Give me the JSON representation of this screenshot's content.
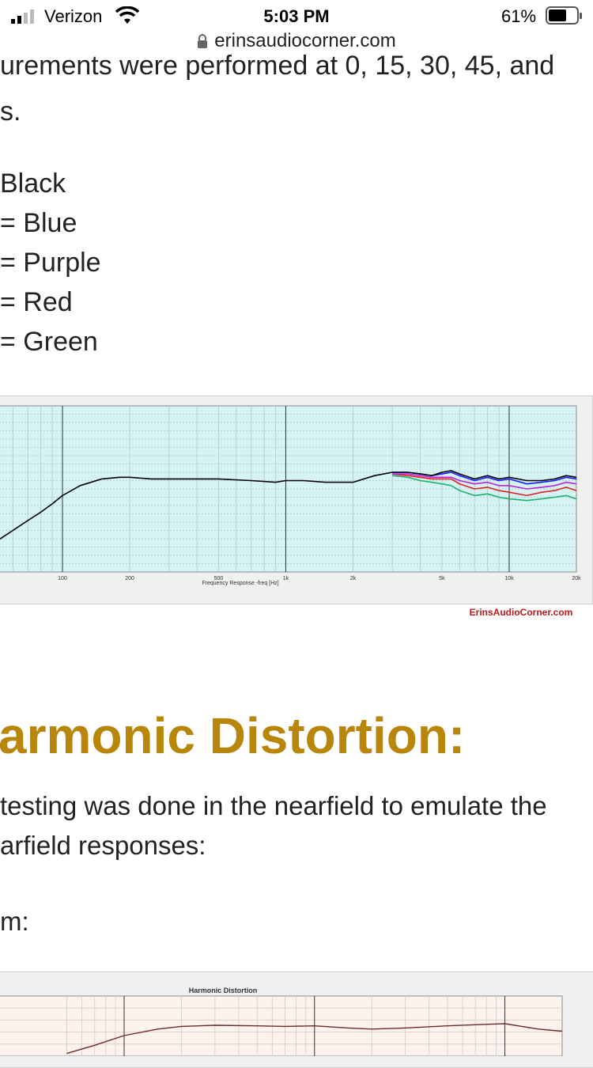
{
  "status": {
    "carrier": "Verizon",
    "time": "5:03 PM",
    "battery": "61%"
  },
  "browser": {
    "url": "erinsaudiocorner.com"
  },
  "intro": {
    "line1": "urements were performed at 0, 15, 30, 45, and",
    "line2": "s."
  },
  "legend_lines": [
    "Black",
    "= Blue",
    "= Purple",
    "= Red",
    "= Green"
  ],
  "colors": {
    "heading": "#b8860b",
    "watermark": "#c0181c",
    "chart_bg": "#d6f3f3",
    "chart2_bg": "#fdf3ee"
  },
  "chart1": {
    "xlabel": "Frequency Response -freq [Hz]",
    "ticks": [
      "100",
      "200",
      "500",
      "1k",
      "2k",
      "5k",
      "10k",
      "20k"
    ],
    "watermark": "ErinsAudioCorner.com"
  },
  "chart_data": [
    {
      "type": "line",
      "title": "",
      "xlabel": "Frequency Response -freq [Hz]",
      "ylabel": "",
      "x_scale": "log",
      "x_ticks": [
        "100",
        "200",
        "500",
        "1k",
        "2k",
        "5k",
        "10k",
        "20k"
      ],
      "series": [
        {
          "color": "#000000",
          "x": [
            50,
            60,
            70,
            80,
            90,
            100,
            120,
            150,
            180,
            200,
            250,
            300,
            400,
            500,
            700,
            900,
            1000,
            1200,
            1500,
            2000,
            2500,
            3000,
            3500,
            4000,
            4500,
            5000,
            5500,
            6000,
            7000,
            8000,
            9000,
            10000,
            12000,
            14000,
            16000,
            18000,
            20000
          ],
          "y": [
            0.18,
            0.25,
            0.31,
            0.36,
            0.41,
            0.46,
            0.52,
            0.56,
            0.57,
            0.57,
            0.56,
            0.56,
            0.56,
            0.56,
            0.55,
            0.54,
            0.55,
            0.55,
            0.54,
            0.54,
            0.58,
            0.6,
            0.6,
            0.59,
            0.58,
            0.6,
            0.61,
            0.59,
            0.56,
            0.58,
            0.56,
            0.57,
            0.55,
            0.55,
            0.56,
            0.58,
            0.57
          ]
        },
        {
          "color": "#1a1aff",
          "x": [
            3000,
            3500,
            4000,
            4500,
            5000,
            5500,
            6000,
            7000,
            8000,
            9000,
            10000,
            12000,
            14000,
            16000,
            18000,
            20000
          ],
          "y": [
            0.6,
            0.6,
            0.59,
            0.58,
            0.59,
            0.6,
            0.58,
            0.55,
            0.57,
            0.55,
            0.56,
            0.53,
            0.54,
            0.55,
            0.57,
            0.56
          ]
        },
        {
          "color": "#c020e0",
          "x": [
            3000,
            3500,
            4000,
            4500,
            5000,
            5500,
            6000,
            7000,
            8000,
            9000,
            10000,
            12000,
            14000,
            16000,
            18000,
            20000
          ],
          "y": [
            0.59,
            0.59,
            0.58,
            0.57,
            0.57,
            0.57,
            0.55,
            0.53,
            0.54,
            0.52,
            0.52,
            0.5,
            0.51,
            0.52,
            0.54,
            0.53
          ]
        },
        {
          "color": "#e02020",
          "x": [
            3000,
            3500,
            4000,
            4500,
            5000,
            5500,
            6000,
            7000,
            8000,
            9000,
            10000,
            12000,
            14000,
            16000,
            18000,
            20000
          ],
          "y": [
            0.59,
            0.58,
            0.57,
            0.56,
            0.56,
            0.56,
            0.53,
            0.5,
            0.51,
            0.49,
            0.48,
            0.46,
            0.48,
            0.49,
            0.51,
            0.49
          ]
        },
        {
          "color": "#20b070",
          "x": [
            3000,
            3500,
            4000,
            4500,
            5000,
            5500,
            6000,
            7000,
            8000,
            9000,
            10000,
            12000,
            14000,
            16000,
            18000,
            20000
          ],
          "y": [
            0.58,
            0.57,
            0.55,
            0.54,
            0.53,
            0.52,
            0.49,
            0.46,
            0.47,
            0.45,
            0.44,
            0.43,
            0.44,
            0.45,
            0.46,
            0.44
          ]
        }
      ]
    },
    {
      "type": "line",
      "title": "Harmonic Distortion",
      "x_scale": "log",
      "series": [
        {
          "color": "#6b2a2a",
          "x": [
            50,
            70,
            100,
            150,
            200,
            300,
            500,
            700,
            1000,
            1500,
            2000,
            3000,
            5000,
            7000,
            10000,
            15000,
            20000
          ],
          "y": [
            0.05,
            0.2,
            0.38,
            0.5,
            0.55,
            0.57,
            0.56,
            0.55,
            0.56,
            0.52,
            0.5,
            0.52,
            0.56,
            0.58,
            0.6,
            0.5,
            0.46
          ]
        }
      ]
    }
  ],
  "section": {
    "heading": "armonic Distortion:",
    "para1": "testing was done in the nearfield to emulate the",
    "para2": "arfield responses:",
    "para3": "m:"
  },
  "chart2": {
    "title": "Harmonic Distortion"
  }
}
